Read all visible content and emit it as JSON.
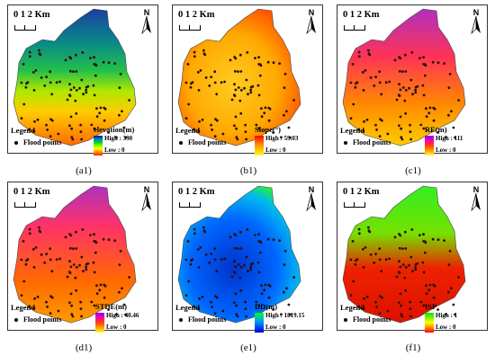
{
  "panels": [
    {
      "id": "a1",
      "caption": "(a1)",
      "title": "elevation(m)",
      "high": "High : 390",
      "low": "Low : 0",
      "ramp": [
        "#ff2200",
        "#ff8800",
        "#ffff00",
        "#88ff00",
        "#00cc44",
        "#008899",
        "#0000cc"
      ]
    },
    {
      "id": "b1",
      "caption": "(b1)",
      "title": "Slope(°)",
      "high": "High : 59.03",
      "low": "Low : 0",
      "ramp": [
        "#ff0000",
        "#ff5500",
        "#ff9900",
        "#ffcc00",
        "#ffff33"
      ]
    },
    {
      "id": "c1",
      "caption": "(c1)",
      "title": "RE(m)",
      "high": "High : 111",
      "low": "Low : 0",
      "ramp": [
        "#8800ff",
        "#ff00aa",
        "#ff4400",
        "#ff9900",
        "#ffff33"
      ]
    },
    {
      "id": "d1",
      "caption": "(d1)",
      "title": "STDE(m)",
      "high": "High : 40.46",
      "low": "Low : 0",
      "ramp": [
        "#8800ff",
        "#ff00aa",
        "#ff4400",
        "#ff9900",
        "#ffff33"
      ]
    },
    {
      "id": "e1",
      "caption": "(e1)",
      "title": "DD(m)",
      "high": "High : 1819.15",
      "low": "Low : 0",
      "ramp": [
        "#00ff00",
        "#00ccaa",
        "#0088ff",
        "#0044ee",
        "#0000cc"
      ]
    },
    {
      "id": "f1",
      "caption": "(f1)",
      "title": "ISP",
      "high": "High : 1",
      "low": "Low : 0",
      "ramp": [
        "#00ee00",
        "#88ee00",
        "#ffff00",
        "#ff8800",
        "#ff0000"
      ]
    }
  ],
  "common": {
    "scale": "0 1 2 Km",
    "north": "N",
    "legend": "Legend",
    "flood_points": "Flood points"
  }
}
